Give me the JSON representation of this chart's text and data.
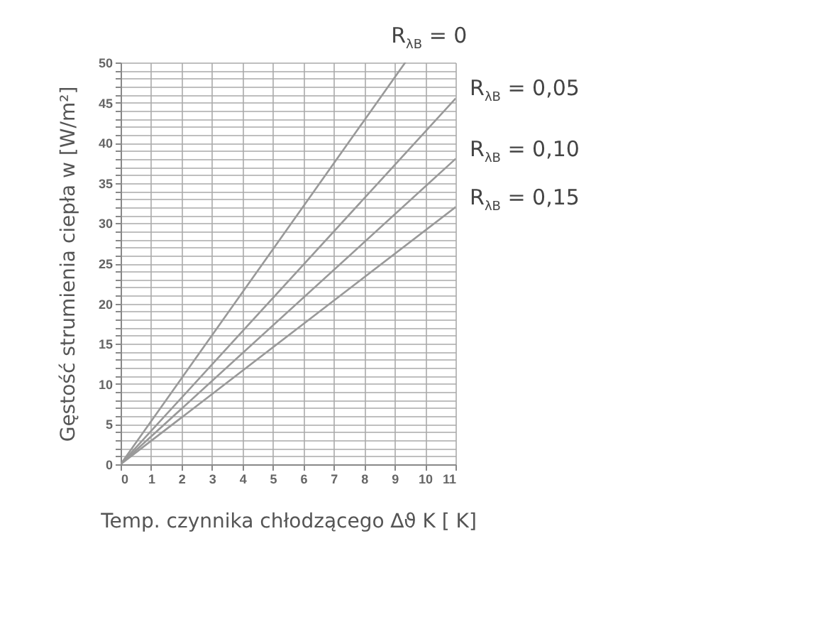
{
  "chart_data": {
    "type": "line",
    "xlabel": "Temp. czynnika chłodzącego ∆ϑ K [ K]",
    "ylabel": "Gęstość strumienia ciepła w [W/m²]",
    "xlim": [
      0,
      11
    ],
    "ylim": [
      0,
      50
    ],
    "grid": true,
    "xticks": [
      0,
      1,
      2,
      3,
      4,
      5,
      6,
      7,
      8,
      9,
      10,
      11
    ],
    "yticks": [
      0,
      {
        "value": 1,
        "label": null
      },
      {
        "value": 2,
        "label": null
      },
      {
        "value": 3,
        "label": null
      },
      {
        "value": 4,
        "label": null
      },
      5,
      {
        "value": 6,
        "label": null
      },
      {
        "value": 7,
        "label": null
      },
      {
        "value": 8,
        "label": null
      },
      {
        "value": 9,
        "label": null
      },
      10,
      {
        "value": 11,
        "label": null
      },
      {
        "value": 12,
        "label": null
      },
      {
        "value": 13,
        "label": null
      },
      {
        "value": 14,
        "label": null
      },
      15,
      {
        "value": 16,
        "label": null
      },
      {
        "value": 17,
        "label": null
      },
      {
        "value": 18,
        "label": null
      },
      {
        "value": 19,
        "label": null
      },
      20,
      {
        "value": 21,
        "label": null
      },
      {
        "value": 22,
        "label": null
      },
      {
        "value": 23,
        "label": null
      },
      {
        "value": 24,
        "label": null
      },
      25,
      {
        "value": 26,
        "label": null
      },
      {
        "value": 27,
        "label": null
      },
      {
        "value": 28,
        "label": null
      },
      {
        "value": 29,
        "label": null
      },
      30,
      {
        "value": 31,
        "label": null
      },
      {
        "value": 32,
        "label": null
      },
      {
        "value": 33,
        "label": null
      },
      {
        "value": 34,
        "label": null
      },
      35,
      {
        "value": 36,
        "label": null
      },
      {
        "value": 37,
        "label": null
      },
      {
        "value": 38,
        "label": null
      },
      {
        "value": 39,
        "label": null
      },
      40,
      {
        "value": 41,
        "label": null
      },
      {
        "value": 42,
        "label": null
      },
      {
        "value": 43,
        "label": null
      },
      {
        "value": 44,
        "label": null
      },
      45,
      {
        "value": 46,
        "label": null
      },
      {
        "value": 47,
        "label": null
      },
      {
        "value": 48,
        "label": null
      },
      {
        "value": 49,
        "label": null
      },
      50
    ],
    "series": [
      {
        "name": "R$_{λB}$ = 0",
        "color": "#999999",
        "x": [
          0,
          9.35
        ],
        "values": [
          0,
          50
        ]
      },
      {
        "name": "R$_{λB}$ = 0,05",
        "color": "#999999",
        "x": [
          0,
          11
        ],
        "values": [
          0,
          45.5
        ]
      },
      {
        "name": "R$_{λB}$ = 0,10",
        "color": "#999999",
        "x": [
          0,
          11
        ],
        "values": [
          0,
          38
        ]
      },
      {
        "name": "R$_{λB}$ = 0,15",
        "color": "#999999",
        "x": [
          0,
          11
        ],
        "values": [
          0,
          32
        ]
      }
    ]
  }
}
